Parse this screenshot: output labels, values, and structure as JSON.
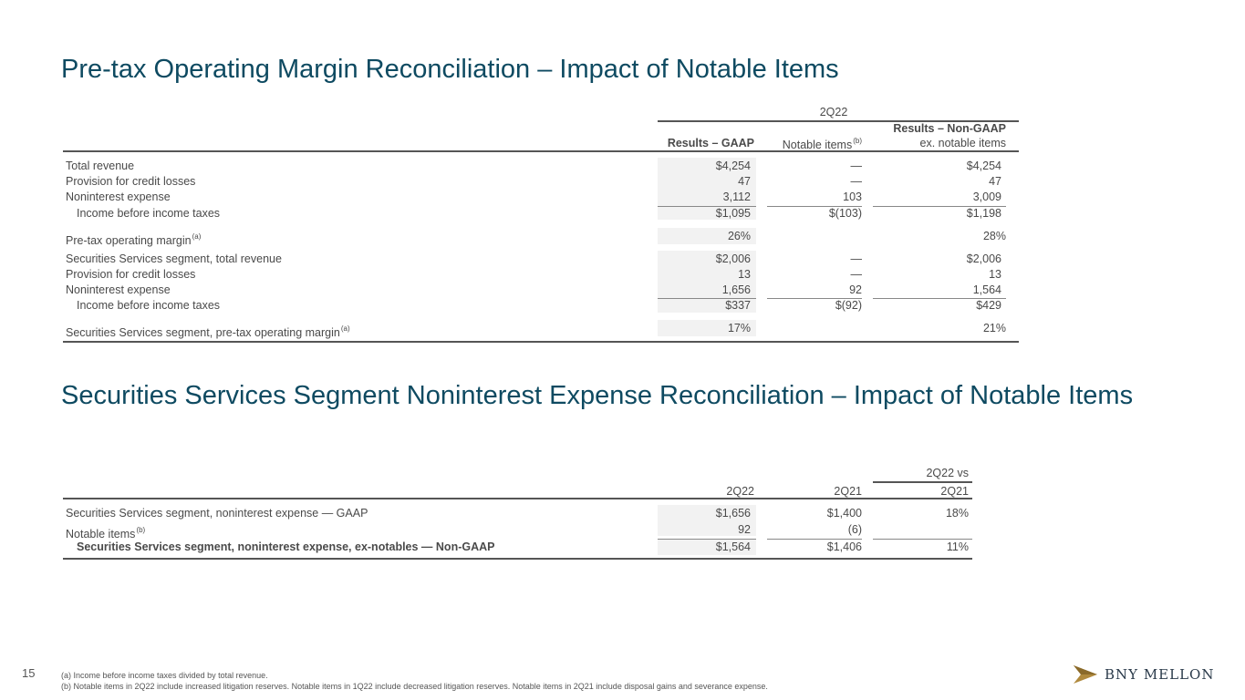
{
  "title1": "Pre-tax Operating Margin Reconciliation – Impact of Notable Items",
  "title2": "Securities Services Segment Noninterest Expense Reconciliation – Impact of Notable Items",
  "table1": {
    "period": "2Q22",
    "col1": "Results – GAAP",
    "col2": "Notable items",
    "col2_sup": "(b)",
    "col3_line1": "Results – Non-GAAP",
    "col3_line2": "ex. notable items",
    "rows": [
      {
        "label": "Total revenue",
        "gaap": "$4,254",
        "notable": "—",
        "nongaap": "$4,254"
      },
      {
        "label": "Provision for credit losses",
        "gaap": "47",
        "notable": "—",
        "nongaap": "47"
      },
      {
        "label": "Noninterest expense",
        "gaap": "3,112",
        "notable": "103",
        "nongaap": "3,009"
      },
      {
        "label": "Income before income taxes",
        "gaap": "$1,095",
        "notable": "$(103)",
        "nongaap": "$1,198"
      },
      {
        "label": "Pre-tax operating margin",
        "sup": "(a)",
        "gaap": "26%",
        "notable": "",
        "nongaap": "28%"
      },
      {
        "label": "Securities Services segment, total revenue",
        "gaap": "$2,006",
        "notable": "—",
        "nongaap": "$2,006"
      },
      {
        "label": "Provision for credit losses",
        "gaap": "13",
        "notable": "—",
        "nongaap": "13"
      },
      {
        "label": "Noninterest expense",
        "gaap": "1,656",
        "notable": "92",
        "nongaap": "1,564"
      },
      {
        "label": "Income before income taxes",
        "gaap": "$337",
        "notable": "$(92)",
        "nongaap": "$429"
      },
      {
        "label": "Securities Services segment,  pre-tax operating margin",
        "sup": "(a)",
        "gaap": "17%",
        "notable": "",
        "nongaap": "21%"
      }
    ]
  },
  "table2": {
    "col1": "2Q22",
    "col2": "2Q21",
    "col3_line1": "2Q22 vs",
    "col3_line2": "2Q21",
    "rows": [
      {
        "label": "Securities Services segment, noninterest expense — GAAP",
        "c1": "$1,656",
        "c2": "$1,400",
        "c3": "18%"
      },
      {
        "label": "Notable items",
        "sup": "(b)",
        "c1": "92",
        "c2": "(6)",
        "c3": ""
      },
      {
        "label": "Securities Services segment, noninterest expense, ex-notables — Non-GAAP",
        "c1": "$1,564",
        "c2": "$1,406",
        "c3": "11%"
      }
    ]
  },
  "page_number": "15",
  "footnotes": [
    "(a) Income before income taxes divided by total revenue.",
    "(b) Notable items in 2Q22 include increased litigation reserves. Notable items in 1Q22 include decreased litigation reserves. Notable items in 2Q21 include disposal gains and severance expense."
  ],
  "logo_text": "BNY MELLON"
}
